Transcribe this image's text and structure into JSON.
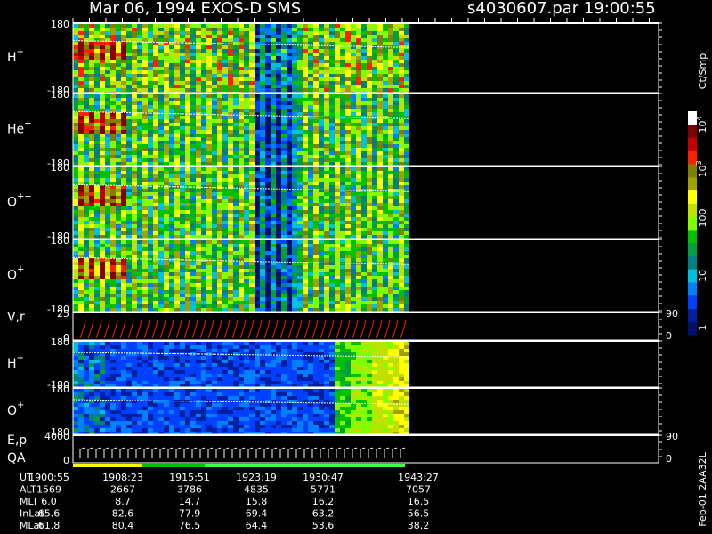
{
  "header": {
    "title": "Mar 06, 1994   EXOS-D SMS",
    "file": "s4030607.par  19:00:55"
  },
  "panels": [
    {
      "label": "H",
      "charge": "+",
      "ticks": [
        "180",
        "-180"
      ]
    },
    {
      "label": "He",
      "charge": "+",
      "ticks": [
        "180",
        "-180"
      ]
    },
    {
      "label": "O",
      "charge": "++",
      "ticks": [
        "180",
        "-180"
      ]
    },
    {
      "label": "O",
      "charge": "+",
      "ticks": [
        "180",
        "-180"
      ]
    },
    {
      "label": "V,r",
      "ticks": [
        "25",
        "0"
      ],
      "right_ticks": [
        "90",
        "0"
      ]
    },
    {
      "label": "H",
      "charge": "+",
      "ticks": [
        "180",
        "-180"
      ]
    },
    {
      "label": "O",
      "charge": "+",
      "ticks": [
        "180",
        "-180"
      ]
    },
    {
      "label": "E,p",
      "label2": "QA",
      "ticks": [
        "4000",
        "0"
      ],
      "right_ticks": [
        "90",
        "0"
      ]
    }
  ],
  "colorbar": {
    "title": "Ct/Smp",
    "ticks": [
      {
        "base": "10",
        "exp": "4"
      },
      {
        "base": "10",
        "exp": "3"
      },
      {
        "base": "100"
      },
      {
        "base": "10"
      },
      {
        "base": "1"
      }
    ]
  },
  "footer": {
    "rows": [
      {
        "name": "UT",
        "values": [
          "1900:55",
          "1908:23",
          "1915:51",
          "1923:19",
          "1930:47",
          "1943:27"
        ]
      },
      {
        "name": "ALT",
        "values": [
          "1569",
          "2667",
          "3786",
          "4835",
          "5771",
          "7057"
        ]
      },
      {
        "name": "MLT",
        "values": [
          "6.0",
          "8.7",
          "14.7",
          "15.8",
          "16.2",
          "16.5"
        ]
      },
      {
        "name": "InLat",
        "values": [
          "65.6",
          "82.6",
          "77.9",
          "69.4",
          "63.2",
          "56.5"
        ]
      },
      {
        "name": "MLat",
        "values": [
          "61.8",
          "80.4",
          "76.5",
          "64.4",
          "53.6",
          "38.2"
        ]
      }
    ],
    "code": "Feb-01 2AA32L"
  }
}
